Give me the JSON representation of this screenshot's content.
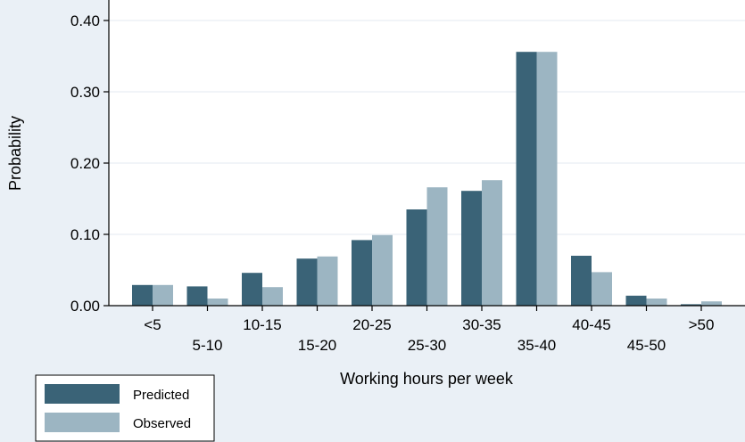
{
  "chart_data": {
    "type": "bar",
    "xlabel": "Working hours per week",
    "ylabel": "Probability",
    "ylim": [
      0,
      0.4
    ],
    "yticks": [
      "0.00",
      "0.10",
      "0.20",
      "0.30",
      "0.40"
    ],
    "grid": true,
    "legend_position": "bottom-left",
    "categories": [
      "<5",
      "5-10",
      "10-15",
      "15-20",
      "20-25",
      "25-30",
      "30-35",
      "35-40",
      "40-45",
      "45-50",
      ">50"
    ],
    "series": [
      {
        "name": "Predicted",
        "color": "#3a6377",
        "values": [
          0.029,
          0.027,
          0.046,
          0.066,
          0.092,
          0.135,
          0.161,
          0.356,
          0.07,
          0.014,
          0.002
        ]
      },
      {
        "name": "Observed",
        "color": "#9cb5c2",
        "values": [
          0.029,
          0.01,
          0.026,
          0.069,
          0.099,
          0.166,
          0.176,
          0.356,
          0.047,
          0.01,
          0.006
        ]
      }
    ]
  }
}
